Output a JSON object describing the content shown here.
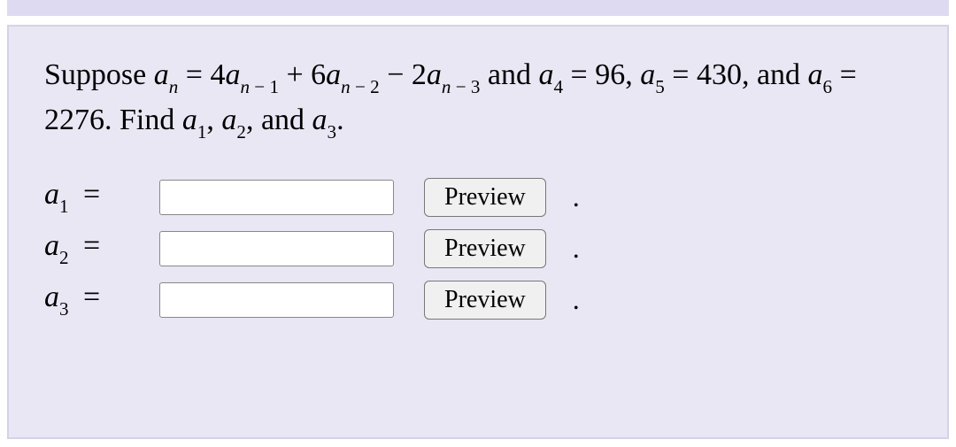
{
  "colors": {
    "top_band": "#dedaf2",
    "panel_bg": "#e9e7f4",
    "panel_border": "#d5d2e8",
    "text": "#000000",
    "input_bg": "#ffffff",
    "input_border": "#888888",
    "button_bg": "#f0f0f0",
    "button_border": "#777777"
  },
  "typography": {
    "body_fontsize": 34,
    "button_fontsize": 28,
    "font_family": "Georgia, serif"
  },
  "problem": {
    "intro": "Suppose ",
    "eq_lhs_var": "a",
    "eq_lhs_sub": "n",
    "eq_op": " = ",
    "term1_coef": "4",
    "term1_var": "a",
    "term1_sub_var": "n",
    "term1_sub_suffix": " − 1",
    "term2_op": " + ",
    "term2_coef": "6",
    "term2_var": "a",
    "term2_sub_var": "n",
    "term2_sub_suffix": " − 2",
    "term3_op": " − ",
    "term3_coef": "2",
    "term3_var": "a",
    "term3_sub_var": "n",
    "term3_sub_suffix": " − 3",
    "and_word": " and ",
    "given1_var": "a",
    "given1_sub": "4",
    "eq2": " = ",
    "given1_val": " 96",
    "comma1": ", ",
    "given2_var": "a",
    "given2_sub": "5",
    "eq3": " = ",
    "given2_val": " 430",
    "comma2": ", and ",
    "given3_var": "a",
    "given3_sub": "6",
    "eq4": " = ",
    "given3_val": " 2276",
    "find_text": ". Find ",
    "find1_var": "a",
    "find1_sub": "1",
    "fcomma1": ", ",
    "find2_var": "a",
    "find2_sub": "2",
    "fcomma2": ",  and ",
    "find3_var": "a",
    "find3_sub": "3",
    "period": "."
  },
  "answers": [
    {
      "var": "a",
      "sub": "1",
      "eq": " = ",
      "value": "",
      "preview": "Preview",
      "period": "."
    },
    {
      "var": "a",
      "sub": "2",
      "eq": " = ",
      "value": "",
      "preview": "Preview",
      "period": "."
    },
    {
      "var": "a",
      "sub": "3",
      "eq": " = ",
      "value": "",
      "preview": "Preview",
      "period": "."
    }
  ]
}
